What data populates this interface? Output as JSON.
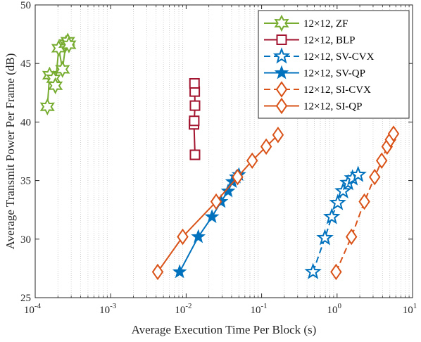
{
  "chart_data": {
    "type": "line",
    "xlabel": "Average Execution Time Per Block (s)",
    "ylabel": "Average Transmit Power Per Frame (dB)",
    "xscale": "log",
    "xlim": [
      0.0001,
      10
    ],
    "ylim": [
      25,
      50
    ],
    "xticks": [
      {
        "value": 0.0001,
        "base": "10",
        "exp": "-4"
      },
      {
        "value": 0.001,
        "base": "10",
        "exp": "-3"
      },
      {
        "value": 0.01,
        "base": "10",
        "exp": "-2"
      },
      {
        "value": 0.1,
        "base": "10",
        "exp": "-1"
      },
      {
        "value": 1,
        "base": "10",
        "exp": "0"
      },
      {
        "value": 10,
        "base": "10",
        "exp": "1"
      }
    ],
    "yticks": [
      25,
      30,
      35,
      40,
      45,
      50
    ],
    "grid": "x-minor dotted",
    "legend_position": "top-right",
    "series": [
      {
        "name": "12×12, ZF",
        "color": "#77AC30",
        "marker": "hexagram-open",
        "linestyle": "solid",
        "points": [
          [
            0.000145,
            41.3
          ],
          [
            0.000155,
            44.0
          ],
          [
            0.000175,
            43.7
          ],
          [
            0.000185,
            43.1
          ],
          [
            0.000205,
            46.3
          ],
          [
            0.00023,
            44.5
          ],
          [
            0.000255,
            46.7
          ],
          [
            0.00027,
            46.9
          ],
          [
            0.00028,
            46.6
          ]
        ]
      },
      {
        "name": "12×12, BLP",
        "color": "#A2142F",
        "marker": "square-open",
        "linestyle": "solid",
        "points": [
          [
            0.0131,
            37.2
          ],
          [
            0.0127,
            39.8
          ],
          [
            0.0128,
            40.1
          ],
          [
            0.0131,
            41.4
          ],
          [
            0.013,
            42.6
          ],
          [
            0.0129,
            43.3
          ]
        ]
      },
      {
        "name": "12×12, SV-CVX",
        "color": "#0072BD",
        "marker": "star-open",
        "linestyle": "dashed",
        "points": [
          [
            0.48,
            27.2
          ],
          [
            0.69,
            30.1
          ],
          [
            0.85,
            31.9
          ],
          [
            1.02,
            33.1
          ],
          [
            1.2,
            34.1
          ],
          [
            1.4,
            34.8
          ],
          [
            1.6,
            35.2
          ],
          [
            1.9,
            35.5
          ]
        ]
      },
      {
        "name": "12×12, SV-QP",
        "color": "#0072BD",
        "marker": "star-filled",
        "linestyle": "solid",
        "points": [
          [
            0.0082,
            27.2
          ],
          [
            0.0145,
            30.2
          ],
          [
            0.022,
            31.9
          ],
          [
            0.029,
            33.2
          ],
          [
            0.036,
            34.1
          ],
          [
            0.041,
            34.9
          ],
          [
            0.046,
            35.3
          ],
          [
            0.05,
            35.5
          ]
        ]
      },
      {
        "name": "12×12, SI-CVX",
        "color": "#D95319",
        "marker": "diamond-open",
        "linestyle": "dashed",
        "points": [
          [
            0.97,
            27.2
          ],
          [
            1.55,
            30.2
          ],
          [
            2.3,
            33.2
          ],
          [
            3.15,
            35.3
          ],
          [
            3.9,
            36.7
          ],
          [
            4.6,
            37.9
          ],
          [
            5.1,
            38.5
          ],
          [
            5.6,
            39.0
          ]
        ]
      },
      {
        "name": "12×12, SI-QP",
        "color": "#D95319",
        "marker": "diamond-open",
        "linestyle": "solid",
        "points": [
          [
            0.0042,
            27.2
          ],
          [
            0.009,
            30.2
          ],
          [
            0.025,
            33.2
          ],
          [
            0.048,
            35.3
          ],
          [
            0.075,
            36.7
          ],
          [
            0.115,
            37.9
          ],
          [
            0.165,
            38.9
          ]
        ]
      }
    ]
  }
}
